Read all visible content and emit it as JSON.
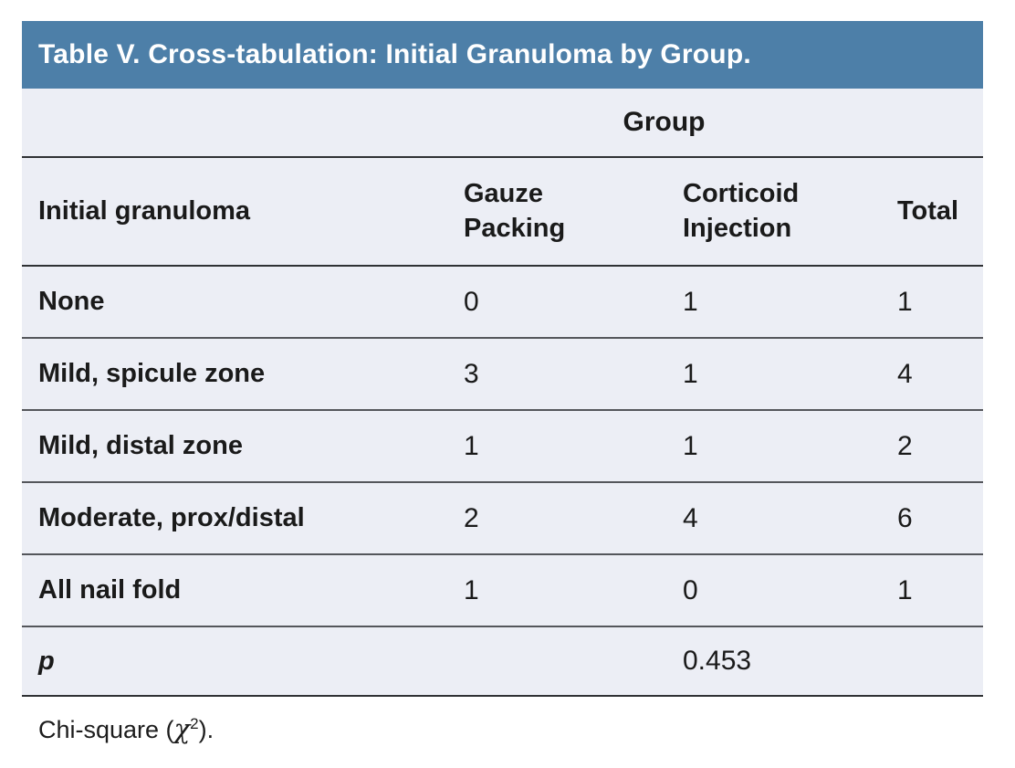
{
  "table": {
    "title": "Table V. Cross-tabulation: Initial Granuloma by Group.",
    "group_header": "Group",
    "column_headers": {
      "stub": "Initial granuloma",
      "gauze": "Gauze Packing",
      "corticoid": "Corticoid Injection",
      "total": "Total"
    },
    "rows": [
      {
        "label": "None",
        "gauze_packing": "0",
        "corticoid_injection": "1",
        "total": "1"
      },
      {
        "label": "Mild, spicule zone",
        "gauze_packing": "3",
        "corticoid_injection": "1",
        "total": "4"
      },
      {
        "label": "Mild, distal zone",
        "gauze_packing": "1",
        "corticoid_injection": "1",
        "total": "2"
      },
      {
        "label": "Moderate, prox/distal",
        "gauze_packing": "2",
        "corticoid_injection": "4",
        "total": "6"
      },
      {
        "label": "All nail fold",
        "gauze_packing": "1",
        "corticoid_injection": "0",
        "total": "1"
      }
    ],
    "p_row": {
      "label": "p",
      "value": "0.453"
    },
    "footnote": {
      "prefix": "Chi-square (",
      "symbol": "χ",
      "superscript": "2",
      "suffix": ")."
    },
    "colors": {
      "title_bar": "#4D7FA8",
      "title_text": "#FFFFFF",
      "body_background": "#ECEEF5",
      "heavy_line": "#2F3134",
      "row_line": "#54565B",
      "text": "#1A1A1A"
    }
  }
}
